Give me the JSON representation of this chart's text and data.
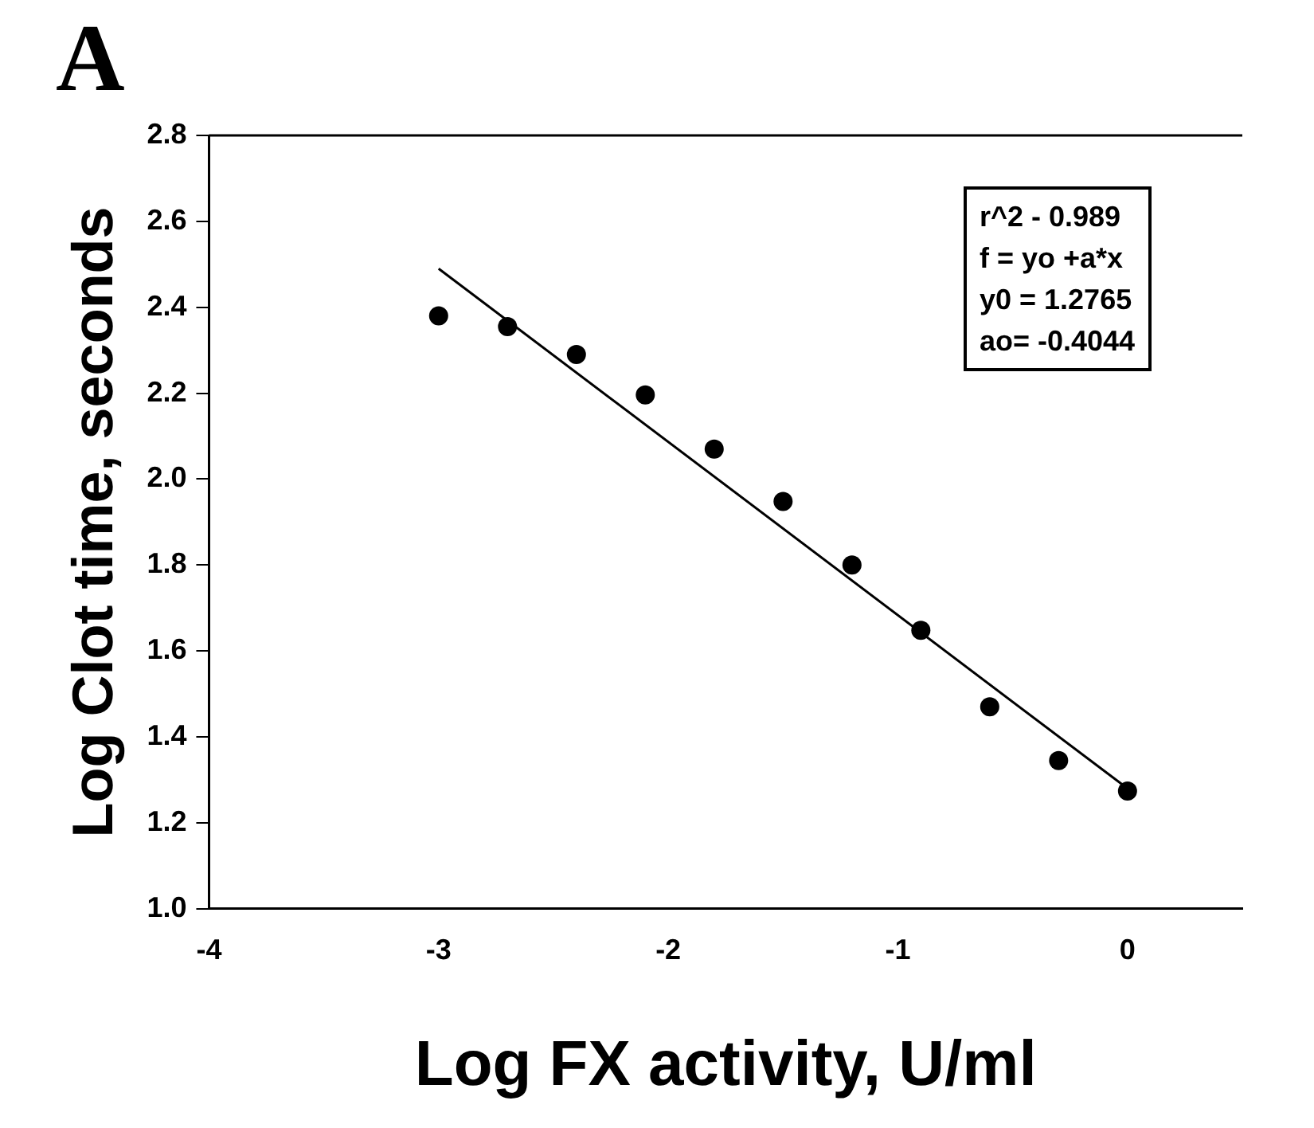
{
  "chart_data": {
    "type": "scatter",
    "title": "A",
    "xlabel": "Log FX activity, U/ml",
    "ylabel": "Log Clot time, seconds",
    "x": [
      -3,
      -2.7,
      -2.4,
      -2.1,
      -1.8,
      -1.5,
      -1.2,
      -0.9,
      -0.6,
      -0.3,
      0
    ],
    "series": [
      {
        "color": "#000000",
        "values": [
          2.38,
          2.355,
          2.29,
          2.196,
          2.07,
          1.948,
          1.8,
          1.648,
          1.47,
          1.345,
          1.274
        ]
      },
      {
        "type": "line",
        "marker": "none",
        "color": "#000000",
        "x": [
          -3,
          0
        ],
        "values": [
          2.49,
          1.28
        ]
      }
    ],
    "marker": "circle",
    "xlim": [
      -4,
      0.5
    ],
    "xticks": [
      -4,
      -3,
      -2,
      -1,
      0
    ],
    "ylim": [
      1.0,
      2.8
    ],
    "yticks": [
      {
        "value": 1.0,
        "label": "1.0"
      },
      {
        "value": 1.2,
        "label": "1.2"
      },
      {
        "value": 1.4,
        "label": "1.4"
      },
      {
        "value": 1.6,
        "label": "1.6"
      },
      {
        "value": 1.8,
        "label": "1.8"
      },
      {
        "value": 2.0,
        "label": "2.0"
      },
      {
        "value": 2.2,
        "label": "2.2"
      },
      {
        "value": 2.4,
        "label": "2.4"
      },
      {
        "value": 2.6,
        "label": "2.6"
      },
      {
        "value": 2.8,
        "label": "2.8"
      }
    ],
    "grid": false,
    "legend": false,
    "annotations": [
      "r^2 - 0.989",
      "f = yo +a*x",
      "y0 = 1.2765",
      "ao= -0.4044"
    ]
  }
}
